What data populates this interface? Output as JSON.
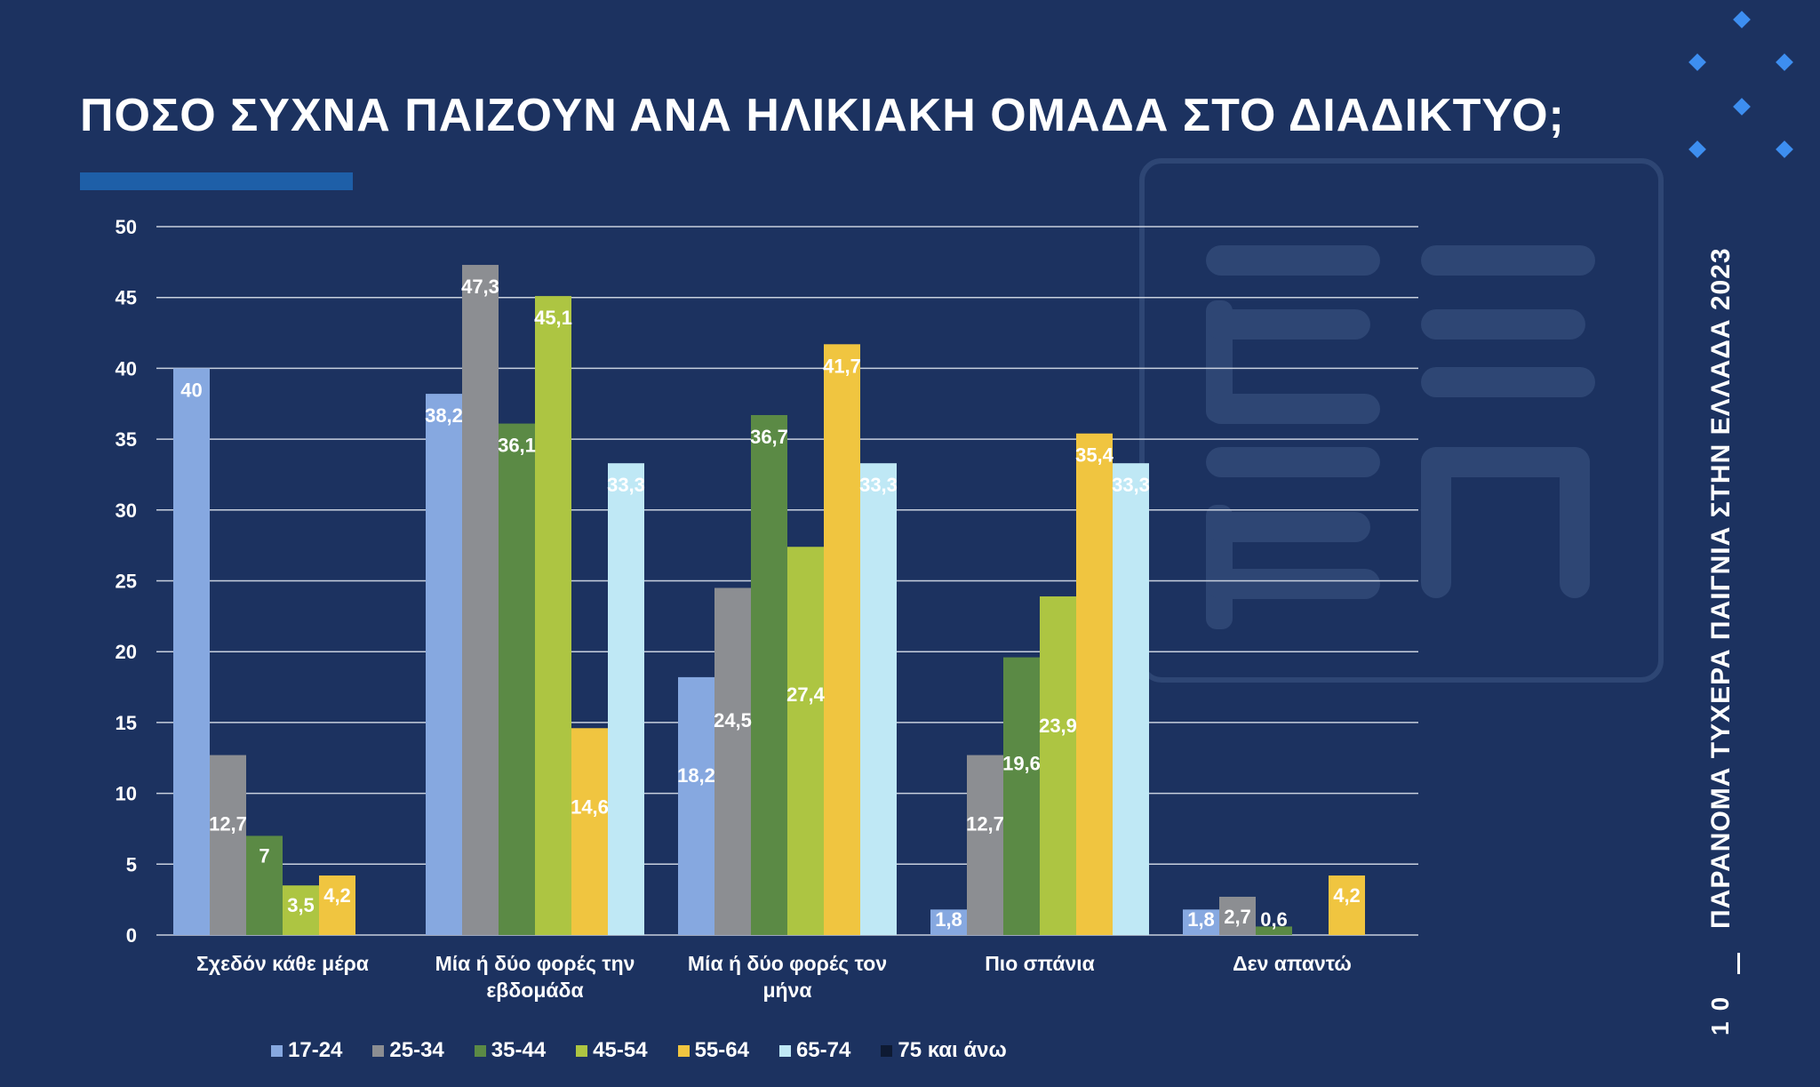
{
  "title": "ΠΟΣΟ ΣΥΧΝΑ ΠΑΙΖΟΥΝ ΑΝΑ ΗΛΙΚΙΑΚΗ ΟΜΑΔΑ ΣΤΟ ΔΙΑΔΙΚΤΥΟ;",
  "side_title": "ΠΑΡΑΝΟΜΑ ΤΥΧΕΡΑ ΠΑΙΓΝΙΑ ΣΤΗΝ ΕΛΛΑΔΑ 2023",
  "page_number": "10",
  "colors": {
    "background": "#1c3260",
    "accent_bar": "#1e5fa8",
    "decor_diamond": "#3d8ef0",
    "logo": "#2e4674"
  },
  "logo": "ΕΕΠ",
  "chart_data": {
    "type": "bar",
    "categories": [
      [
        "Σχεδόν κάθε μέρα"
      ],
      [
        "Μία ή δύο φορές την",
        "εβδομάδα"
      ],
      [
        "Μία ή δύο φορές τον",
        "μήνα"
      ],
      [
        "Πιο σπάνια"
      ],
      [
        "Δεν απαντώ"
      ]
    ],
    "ylim": [
      0,
      50
    ],
    "yticks": [
      0,
      5,
      10,
      15,
      20,
      25,
      30,
      35,
      40,
      45,
      50
    ],
    "grid": true,
    "legend_position": "bottom",
    "series": [
      {
        "name": "17-24",
        "color": "#86a8e0",
        "values": [
          40,
          38.2,
          18.2,
          1.8,
          1.8
        ],
        "labels": [
          "40",
          "38,2",
          "18,2",
          "1,8",
          "1,8"
        ]
      },
      {
        "name": "25-34",
        "color": "#8c8e92",
        "values": [
          12.7,
          47.3,
          24.5,
          12.7,
          2.7
        ],
        "labels": [
          "12,7",
          "47,3",
          "24,5",
          "12,7",
          "2,7"
        ]
      },
      {
        "name": "35-44",
        "color": "#5b8a45",
        "values": [
          7,
          36.1,
          36.7,
          19.6,
          0.6
        ],
        "labels": [
          "7",
          "36,1",
          "36,7",
          "19,6",
          "0,6"
        ]
      },
      {
        "name": "45-54",
        "color": "#adc542",
        "values": [
          3.5,
          45.1,
          27.4,
          23.9,
          null
        ],
        "labels": [
          "3,5",
          "45,1",
          "27,4",
          "23,9",
          ""
        ]
      },
      {
        "name": "55-64",
        "color": "#f0c540",
        "values": [
          4.2,
          14.6,
          41.7,
          35.4,
          4.2
        ],
        "labels": [
          "4,2",
          "14,6",
          "41,7",
          "35,4",
          "4,2"
        ]
      },
      {
        "name": "65-74",
        "color": "#bfe8f5",
        "values": [
          null,
          33.3,
          33.3,
          33.3,
          null
        ],
        "labels": [
          "",
          "33,3",
          "33,3",
          "33,3",
          ""
        ]
      },
      {
        "name": "75 και άνω",
        "color": "#0e1a33",
        "values": [
          null,
          null,
          null,
          null,
          null
        ],
        "labels": [
          "",
          "",
          "",
          "",
          ""
        ]
      }
    ]
  }
}
